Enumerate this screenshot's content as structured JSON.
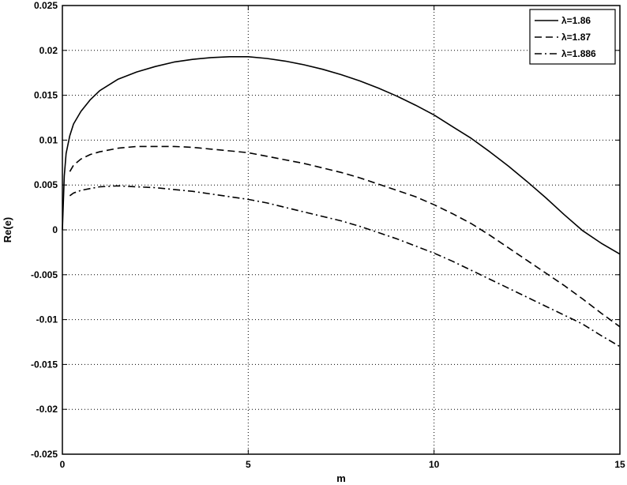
{
  "chart_data": {
    "type": "line",
    "title": "",
    "xlabel": "m",
    "ylabel": "Re(e)",
    "xlim": [
      0,
      15
    ],
    "ylim": [
      -0.025,
      0.025
    ],
    "xticks": [
      0,
      5,
      10,
      15
    ],
    "xtick_labels": [
      "0",
      "5",
      "10",
      "15"
    ],
    "yticks": [
      0.025,
      0.02,
      0.015,
      0.01,
      0.005,
      0,
      -0.005,
      -0.01,
      -0.015,
      -0.02,
      -0.025
    ],
    "ytick_labels": [
      "0.025",
      "0.02",
      "0.015",
      "0.01",
      "0.005",
      "0",
      "-0.005",
      "-0.01",
      "-0.015",
      "-0.02",
      "-0.025"
    ],
    "grid": true,
    "legend_position": "top-right",
    "series": [
      {
        "name": "λ=1.86",
        "style": "solid",
        "x": [
          0,
          0.05,
          0.1,
          0.2,
          0.3,
          0.5,
          0.75,
          1,
          1.5,
          2,
          2.5,
          3,
          3.5,
          4,
          4.5,
          5,
          5.5,
          6,
          6.5,
          7,
          7.5,
          8,
          8.5,
          9,
          9.5,
          10,
          10.5,
          11,
          11.5,
          12,
          12.5,
          13,
          13.5,
          14,
          14.5,
          15
        ],
        "y": [
          0,
          0.006,
          0.0085,
          0.0105,
          0.0118,
          0.0132,
          0.0145,
          0.0155,
          0.0168,
          0.0176,
          0.0182,
          0.0187,
          0.019,
          0.0192,
          0.0193,
          0.0193,
          0.0191,
          0.0188,
          0.0184,
          0.0179,
          0.0173,
          0.0166,
          0.0158,
          0.0149,
          0.0139,
          0.0128,
          0.0115,
          0.0102,
          0.0087,
          0.0071,
          0.0054,
          0.0036,
          0.0017,
          -0.0001,
          -0.0015,
          -0.0027
        ]
      },
      {
        "name": "λ=1.87",
        "style": "dashed",
        "x": [
          0.2,
          0.3,
          0.5,
          0.75,
          1,
          1.5,
          2,
          2.5,
          3,
          3.5,
          4,
          4.5,
          5,
          5.5,
          6,
          6.5,
          7,
          7.5,
          8,
          8.5,
          9,
          9.5,
          10,
          10.5,
          11,
          11.5,
          12,
          12.5,
          13,
          13.5,
          14,
          14.5,
          15
        ],
        "y": [
          0.0065,
          0.0072,
          0.0079,
          0.0084,
          0.0087,
          0.0091,
          0.0093,
          0.0093,
          0.0093,
          0.0092,
          0.009,
          0.0088,
          0.0086,
          0.0082,
          0.0078,
          0.0074,
          0.0069,
          0.0064,
          0.0058,
          0.0051,
          0.0044,
          0.0037,
          0.0028,
          0.0018,
          0.0007,
          -0.0006,
          -0.002,
          -0.0034,
          -0.0048,
          -0.0062,
          -0.0077,
          -0.0093,
          -0.0108
        ]
      },
      {
        "name": "λ=1.886",
        "style": "dashdot",
        "x": [
          0.2,
          0.3,
          0.5,
          0.75,
          1,
          1.5,
          2,
          2.5,
          3,
          3.5,
          4,
          4.5,
          5,
          5.5,
          6,
          6.5,
          7,
          7.5,
          8,
          8.5,
          9,
          9.5,
          10,
          10.5,
          11,
          11.5,
          12,
          12.5,
          13,
          13.5,
          14,
          14.5,
          15
        ],
        "y": [
          0.0038,
          0.0041,
          0.0044,
          0.0046,
          0.0048,
          0.0049,
          0.0048,
          0.0047,
          0.0045,
          0.0043,
          0.004,
          0.0037,
          0.0034,
          0.003,
          0.0025,
          0.002,
          0.0015,
          0.001,
          0.0004,
          -0.0003,
          -0.001,
          -0.0018,
          -0.0026,
          -0.0035,
          -0.0045,
          -0.0055,
          -0.0065,
          -0.0075,
          -0.0085,
          -0.0095,
          -0.0105,
          -0.0118,
          -0.013
        ]
      }
    ]
  }
}
